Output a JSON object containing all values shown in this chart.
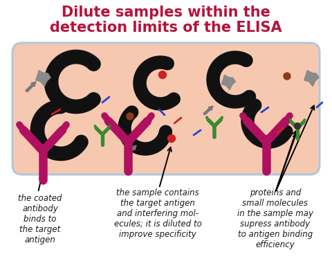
{
  "title_line1": "Dilute samples within the",
  "title_line2": "detection limits of the ELISA",
  "title_color": "#b5133a",
  "background_color": "#ffffff",
  "container_fill": "#f7c8b0",
  "container_border": "#afc8dc",
  "label1": "the coated\nantibody\nbinds to\nthe target\nantigen",
  "label2": "the sample contains\nthe target antigen\nand interfering mol-\necules; it is diluted to\nimprove specificity",
  "label3": "proteins and\nsmall molecules\nin the sample may\nsupress antibody\nto antigen binding\nefficiency",
  "label_fontsize": 8.5,
  "label_style": "italic",
  "label_color": "#1a1a1a",
  "magenta": "#b01060",
  "green": "#3a8a30",
  "dark": "#111111",
  "gray": "#888888",
  "dark_gray": "#606060"
}
